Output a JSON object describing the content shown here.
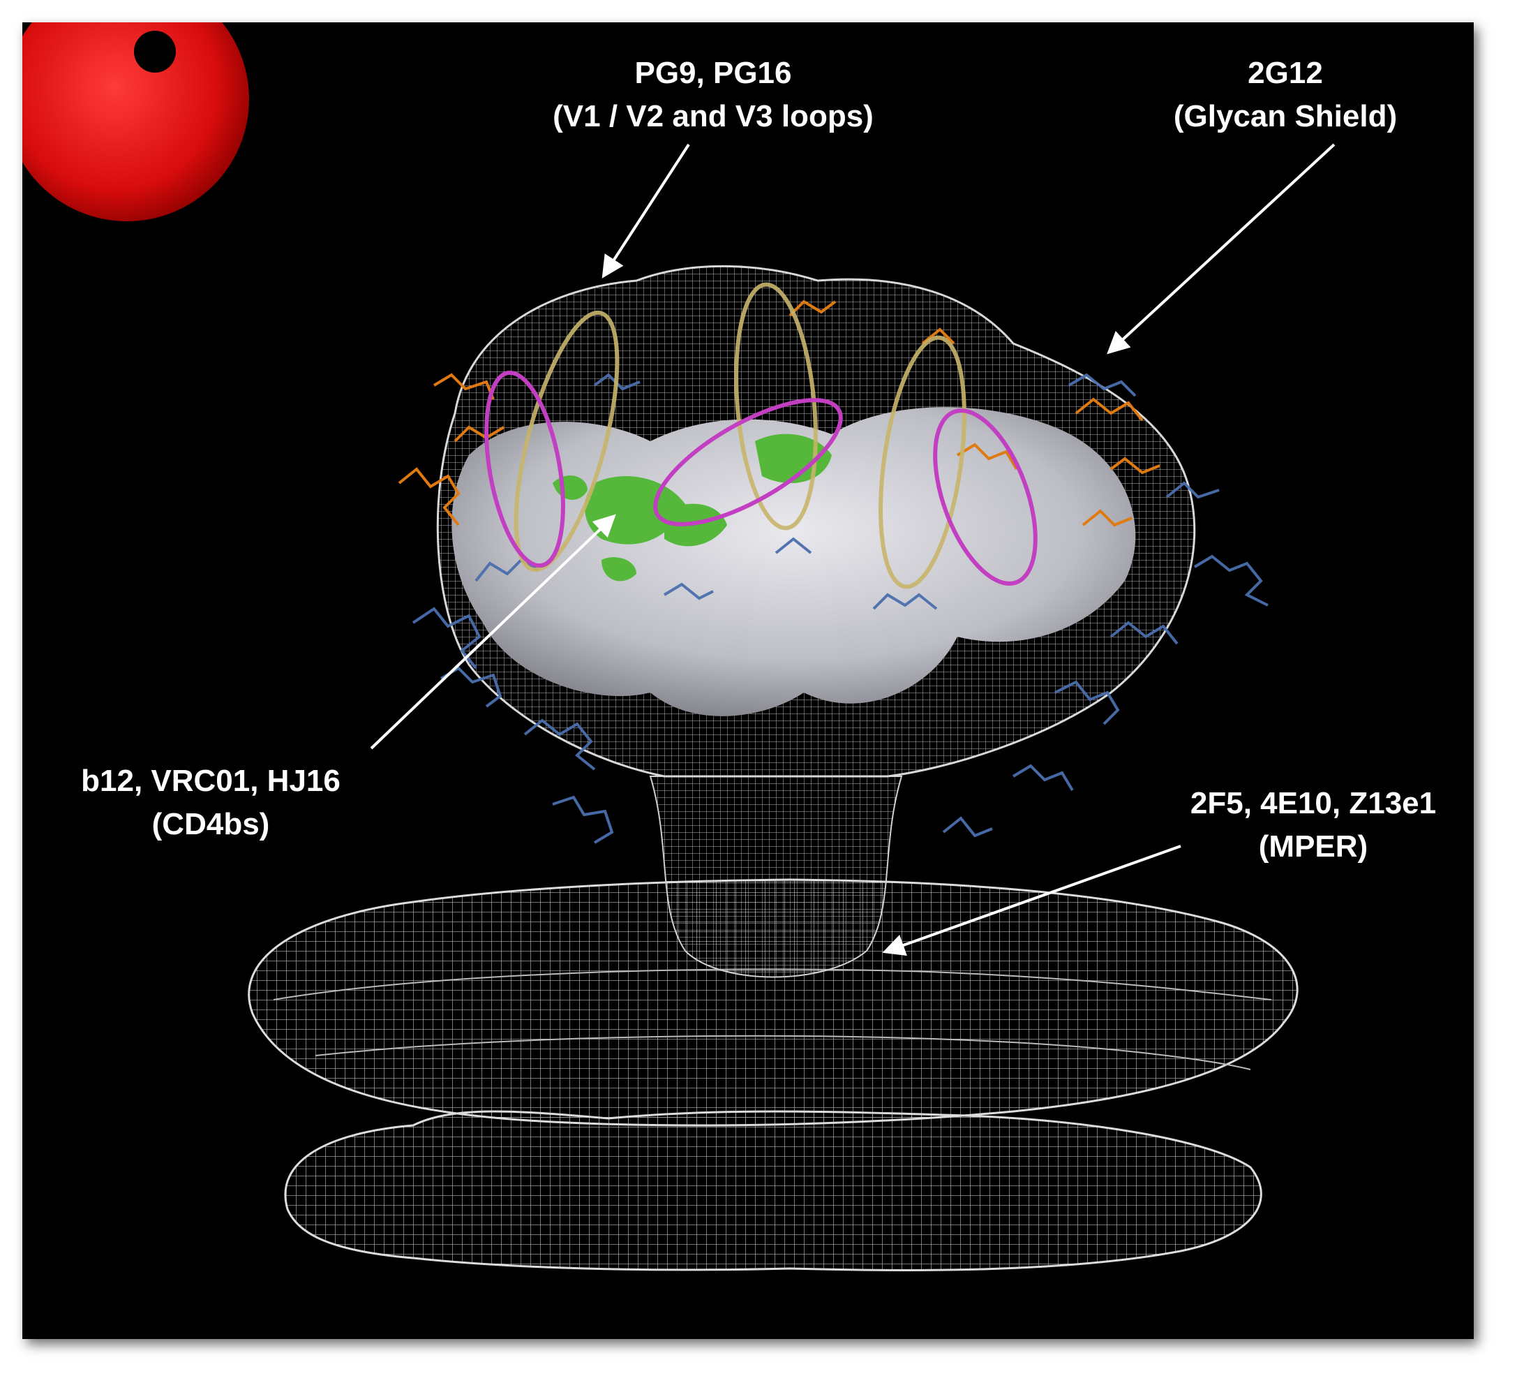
{
  "annotations": [
    {
      "id": "pg9",
      "line1": "PG9, PG16",
      "line2": "(V1 / V2 and V3 loops)"
    },
    {
      "id": "2g12",
      "line1": "2G12",
      "line2": "(Glycan Shield)"
    },
    {
      "id": "b12",
      "line1": "b12, VRC01, HJ16",
      "line2": "(CD4bs)"
    },
    {
      "id": "mper",
      "line1": "2F5, 4E10, Z13e1",
      "line2": "(MPER)"
    }
  ],
  "colors": {
    "background": "#000000",
    "mesh": "#d8d8d8",
    "protein_surface": "#c9c9cf",
    "cd4bs_patch": "#55b83a",
    "glycan_blue": "#4a6fae",
    "glycan_orange": "#e07a10",
    "loop_yellow": "#c8b46a",
    "loop_magenta": "#c23fc2",
    "corner_sphere": "#e01010",
    "arrow": "#ffffff"
  }
}
